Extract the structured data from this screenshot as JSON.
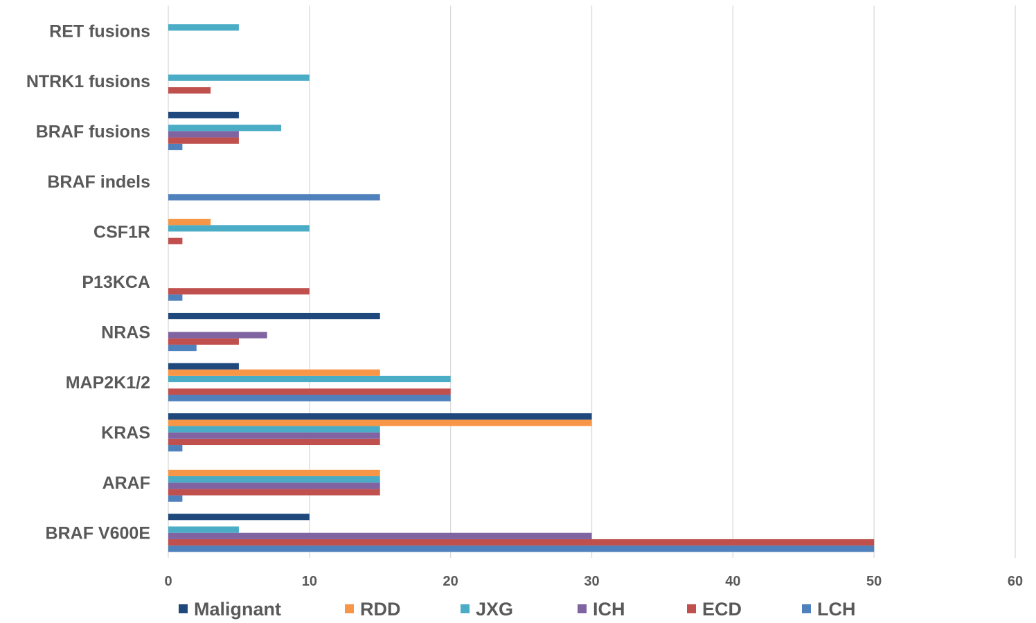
{
  "chart_data": {
    "type": "bar",
    "orientation": "horizontal",
    "title": "",
    "xlabel": "",
    "ylabel": "",
    "xlim": [
      0,
      60
    ],
    "x_ticks": [
      0,
      10,
      20,
      30,
      40,
      50,
      60
    ],
    "grid": true,
    "legend_position": "bottom",
    "categories": [
      "BRAF V600E",
      "ARAF",
      "KRAS",
      "MAP2K1/2",
      "NRAS",
      "P13KCA",
      "CSF1R",
      "BRAF indels",
      "BRAF fusions",
      "NTRK1 fusions",
      "RET fusions"
    ],
    "series": [
      {
        "name": "LCH",
        "color": "#4f81bd",
        "values": [
          50,
          1,
          1,
          20,
          2,
          1,
          0,
          15,
          1,
          0,
          0
        ]
      },
      {
        "name": "ECD",
        "color": "#c0504d",
        "values": [
          50,
          15,
          15,
          20,
          5,
          10,
          1,
          0,
          5,
          3,
          0
        ]
      },
      {
        "name": "ICH",
        "color": "#8064a2",
        "values": [
          30,
          15,
          15,
          0,
          7,
          0,
          0,
          0,
          5,
          0,
          0
        ]
      },
      {
        "name": "JXG",
        "color": "#4bacc6",
        "values": [
          5,
          15,
          15,
          20,
          0,
          0,
          10,
          0,
          8,
          10,
          5
        ]
      },
      {
        "name": "RDD",
        "color": "#f79646",
        "values": [
          0,
          15,
          30,
          15,
          0,
          0,
          3,
          0,
          0,
          0,
          0
        ]
      },
      {
        "name": "Malignant",
        "color": "#1f497d",
        "values": [
          10,
          0,
          30,
          5,
          15,
          0,
          0,
          0,
          5,
          0,
          0
        ]
      }
    ],
    "legend_order": [
      "Malignant",
      "RDD",
      "JXG",
      "ICH",
      "ECD",
      "LCH"
    ]
  }
}
